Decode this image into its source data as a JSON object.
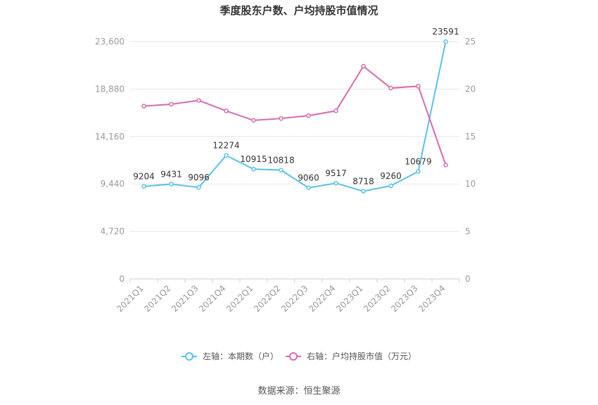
{
  "chart_data": {
    "type": "line",
    "title": "季度股东户数、户均持股市值情况",
    "categories": [
      "2021Q1",
      "2021Q2",
      "2021Q3",
      "2021Q4",
      "2022Q1",
      "2022Q2",
      "2022Q3",
      "2022Q4",
      "2023Q1",
      "2023Q2",
      "2023Q3",
      "2023Q4"
    ],
    "series": [
      {
        "name": "左轴：本期数（户）",
        "axis": "left",
        "color": "#5bc0eb",
        "values": [
          9204,
          9431,
          9096,
          12274,
          10915,
          10818,
          9060,
          9517,
          8718,
          9260,
          10679,
          23591
        ],
        "labels": [
          "9204",
          "9431",
          "9096",
          "12274",
          "10915",
          "10818",
          "9060",
          "9517",
          "8718",
          "9260",
          "10679",
          "23591"
        ]
      },
      {
        "name": "右轴：户均持股市值（万元）",
        "axis": "right",
        "color": "#d56bb0",
        "values": [
          18.2,
          18.4,
          18.8,
          17.7,
          16.7,
          16.9,
          17.2,
          17.7,
          22.4,
          20.1,
          20.3,
          12.0
        ]
      }
    ],
    "left_axis": {
      "ylim": [
        0,
        23600
      ],
      "ticks": [
        0,
        4720,
        9440,
        14160,
        18880,
        23600
      ],
      "tick_labels": [
        "0",
        "4,720",
        "9,440",
        "14,160",
        "18,880",
        "23,600"
      ]
    },
    "right_axis": {
      "ylim": [
        0,
        25
      ],
      "ticks": [
        0,
        5,
        10,
        15,
        20,
        25
      ],
      "tick_labels": [
        "0",
        "5",
        "10",
        "15",
        "20",
        "25"
      ]
    },
    "grid": true,
    "legend_position": "bottom"
  },
  "source_text": "数据来源：恒生聚源"
}
